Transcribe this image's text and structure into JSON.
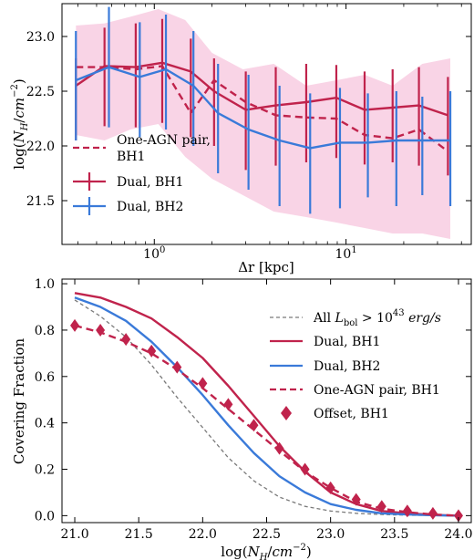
{
  "chart_data": [
    {
      "type": "line",
      "xlabel": "Δr [kpc]",
      "ylabel": "log(N_H/cm^-2)",
      "xscale": "log",
      "xlim": [
        0.33,
        45
      ],
      "ylim": [
        21.1,
        23.3
      ],
      "x_tick_labels": [
        "10^0",
        "10^1"
      ],
      "y_ticks": [
        21.5,
        22.0,
        22.5,
        23.0
      ],
      "y_tick_labels": [
        "21.5",
        "22.0",
        "22.5",
        "23.0"
      ],
      "legend_placement": "lower-left",
      "band": {
        "color": "#f7c6dd",
        "x": [
          0.39,
          0.55,
          0.75,
          1.05,
          1.45,
          2.0,
          2.9,
          4.2,
          6.2,
          8.9,
          12.5,
          17.5,
          25,
          35
        ],
        "upper": [
          23.1,
          23.12,
          23.18,
          23.25,
          23.15,
          22.85,
          22.7,
          22.75,
          22.55,
          22.6,
          22.65,
          22.55,
          22.75,
          22.8
        ],
        "lower": [
          22.1,
          22.05,
          22.15,
          22.2,
          21.9,
          21.7,
          21.55,
          21.4,
          21.35,
          21.3,
          21.25,
          21.2,
          21.2,
          21.15
        ]
      },
      "series": [
        {
          "name": "One-AGN pair, BH1",
          "legend_lines": [
            "One-AGN pair,",
            "BH1"
          ],
          "style": "dashed",
          "color": "#c0234c",
          "x": [
            0.39,
            0.55,
            0.8,
            1.1,
            1.55,
            2.05,
            3.0,
            4.3,
            6.2,
            8.9,
            12.5,
            17.5,
            24,
            34
          ],
          "y": [
            22.72,
            22.72,
            22.7,
            22.73,
            22.3,
            22.6,
            22.4,
            22.28,
            22.26,
            22.25,
            22.1,
            22.07,
            22.15,
            21.95
          ]
        },
        {
          "name": "Dual, BH1",
          "style": "solid-errorbar",
          "color": "#c0234c",
          "x": [
            0.39,
            0.55,
            0.8,
            1.1,
            1.55,
            2.05,
            3.0,
            4.3,
            6.2,
            8.9,
            12.5,
            17.5,
            24,
            34
          ],
          "y": [
            22.55,
            22.73,
            22.72,
            22.76,
            22.68,
            22.5,
            22.33,
            22.37,
            22.4,
            22.44,
            22.33,
            22.35,
            22.37,
            22.28
          ],
          "err_lo": [
            0.5,
            0.55,
            0.55,
            0.55,
            0.6,
            0.5,
            0.55,
            0.55,
            0.55,
            0.55,
            0.5,
            0.5,
            0.55,
            0.55
          ],
          "err_hi": [
            0.25,
            0.35,
            0.4,
            0.4,
            0.3,
            0.3,
            0.35,
            0.35,
            0.35,
            0.3,
            0.35,
            0.35,
            0.35,
            0.35
          ]
        },
        {
          "name": "Dual, BH2",
          "style": "solid-errorbar",
          "color": "#3a7ad9",
          "x": [
            0.39,
            0.58,
            0.84,
            1.15,
            1.6,
            2.15,
            3.1,
            4.5,
            6.5,
            9.3,
            13,
            18.3,
            25,
            35
          ],
          "y": [
            22.6,
            22.72,
            22.63,
            22.7,
            22.55,
            22.3,
            22.15,
            22.05,
            21.98,
            22.03,
            22.03,
            22.05,
            22.05,
            22.05
          ],
          "err_lo": [
            0.55,
            0.55,
            0.55,
            0.55,
            0.55,
            0.55,
            0.55,
            0.6,
            0.6,
            0.6,
            0.5,
            0.6,
            0.5,
            0.6
          ],
          "err_hi": [
            0.45,
            0.55,
            0.5,
            0.5,
            0.5,
            0.45,
            0.5,
            0.5,
            0.5,
            0.5,
            0.45,
            0.45,
            0.4,
            0.45
          ]
        }
      ]
    },
    {
      "type": "line",
      "xlabel": "log(N_H/cm^-2)",
      "ylabel": "Covering Fraction",
      "xlim": [
        20.9,
        24.1
      ],
      "ylim": [
        -0.03,
        1.02
      ],
      "x_ticks": [
        21.0,
        21.5,
        22.0,
        22.5,
        23.0,
        23.5,
        24.0
      ],
      "x_tick_labels": [
        "21.0",
        "21.5",
        "22.0",
        "22.5",
        "23.0",
        "23.5",
        "24.0"
      ],
      "y_ticks": [
        0.0,
        0.2,
        0.4,
        0.6,
        0.8,
        1.0
      ],
      "y_tick_labels": [
        "0.0",
        "0.2",
        "0.4",
        "0.6",
        "0.8",
        "1.0"
      ],
      "legend_placement": "top-right",
      "series": [
        {
          "name": "All L_bol > 10^43 erg/s",
          "legend_parts": [
            "All ",
            "L",
            "bol",
            " > 10",
            "43",
            " erg/s"
          ],
          "style": "thin-dashed",
          "color": "#7a7a7a",
          "x": [
            21.0,
            21.2,
            21.4,
            21.6,
            21.8,
            22.0,
            22.2,
            22.4,
            22.6,
            22.8,
            23.0,
            23.2,
            23.4,
            23.6,
            23.8,
            24.0
          ],
          "y": [
            0.93,
            0.86,
            0.77,
            0.65,
            0.51,
            0.38,
            0.25,
            0.15,
            0.08,
            0.04,
            0.02,
            0.01,
            0.005,
            0.002,
            0.001,
            0.0
          ]
        },
        {
          "name": "Dual, BH1",
          "style": "solid",
          "color": "#c0234c",
          "x": [
            21.0,
            21.2,
            21.4,
            21.6,
            21.8,
            22.0,
            22.2,
            22.4,
            22.6,
            22.8,
            23.0,
            23.2,
            23.4,
            23.6,
            23.8,
            24.0
          ],
          "y": [
            0.96,
            0.94,
            0.9,
            0.85,
            0.77,
            0.68,
            0.56,
            0.43,
            0.3,
            0.19,
            0.1,
            0.05,
            0.02,
            0.01,
            0.004,
            0.0
          ]
        },
        {
          "name": "Dual, BH2",
          "style": "solid",
          "color": "#3a7ad9",
          "x": [
            21.0,
            21.2,
            21.4,
            21.6,
            21.8,
            22.0,
            22.2,
            22.4,
            22.6,
            22.8,
            23.0,
            23.2,
            23.4,
            23.6,
            23.8,
            24.0
          ],
          "y": [
            0.94,
            0.9,
            0.84,
            0.75,
            0.64,
            0.52,
            0.39,
            0.27,
            0.17,
            0.1,
            0.05,
            0.025,
            0.01,
            0.005,
            0.002,
            0.0
          ]
        },
        {
          "name": "One-AGN pair, BH1",
          "style": "dashed",
          "color": "#c0234c",
          "x": [
            21.0,
            21.2,
            21.4,
            21.6,
            21.8,
            22.0,
            22.2,
            22.4,
            22.6,
            22.8,
            23.0,
            23.2,
            23.4,
            23.6,
            23.8,
            24.0
          ],
          "y": [
            0.82,
            0.79,
            0.75,
            0.7,
            0.63,
            0.55,
            0.46,
            0.37,
            0.28,
            0.19,
            0.12,
            0.06,
            0.03,
            0.015,
            0.005,
            0.0
          ]
        },
        {
          "name": "Offset, BH1",
          "style": "markers",
          "color": "#c0234c",
          "x": [
            21.0,
            21.2,
            21.4,
            21.6,
            21.8,
            22.0,
            22.2,
            22.4,
            22.6,
            22.8,
            23.0,
            23.2,
            23.4,
            23.6,
            23.8,
            24.0
          ],
          "y": [
            0.82,
            0.8,
            0.76,
            0.71,
            0.64,
            0.57,
            0.48,
            0.39,
            0.29,
            0.2,
            0.12,
            0.07,
            0.04,
            0.02,
            0.01,
            0.0
          ]
        }
      ]
    }
  ]
}
